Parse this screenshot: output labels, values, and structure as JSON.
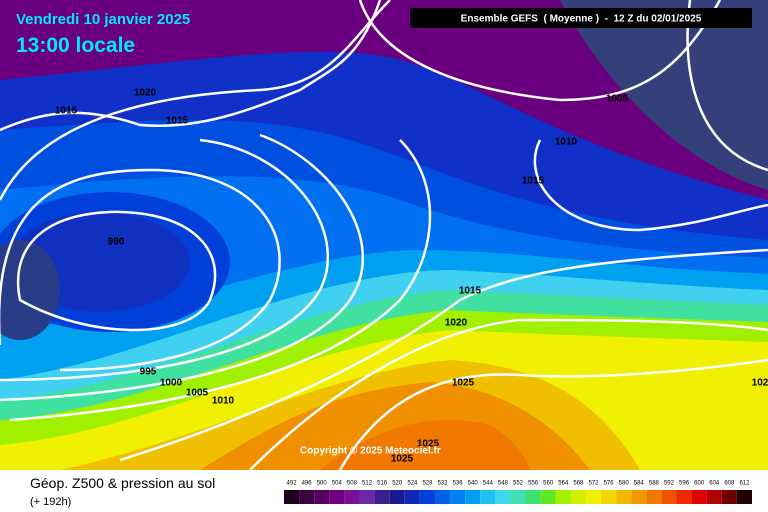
{
  "header": {
    "date": "Vendredi 10 janvier 2025",
    "time": "13:00 locale",
    "model": "Ensemble GEFS  ( Moyenne )  -  12 Z du 02/01/2025"
  },
  "isobar_labels": [
    "1020",
    "1015",
    "1015",
    "990",
    "995",
    "1000",
    "1005",
    "1010",
    "1005",
    "1010",
    "1015",
    "1015",
    "1020",
    "1025",
    "1025",
    "1025",
    "102"
  ],
  "copyright": "Copyright © 2025 Meteociel.fr",
  "legend": {
    "title": "Géop. Z500 & pression au sol",
    "lead": "(+ 192h)",
    "scale": [
      {
        "label": "492",
        "color": "#200020"
      },
      {
        "label": "496",
        "color": "#3a0040"
      },
      {
        "label": "500",
        "color": "#550060"
      },
      {
        "label": "504",
        "color": "#700080"
      },
      {
        "label": "508",
        "color": "#7a1098"
      },
      {
        "label": "512",
        "color": "#6a2aa8"
      },
      {
        "label": "516",
        "color": "#3c2090"
      },
      {
        "label": "520",
        "color": "#1a1a90"
      },
      {
        "label": "524",
        "color": "#1028b8"
      },
      {
        "label": "528",
        "color": "#0040d8"
      },
      {
        "label": "532",
        "color": "#0060e8"
      },
      {
        "label": "536",
        "color": "#0080f0"
      },
      {
        "label": "540",
        "color": "#00a0f0"
      },
      {
        "label": "544",
        "color": "#20c0f0"
      },
      {
        "label": "548",
        "color": "#40d8e8"
      },
      {
        "label": "552",
        "color": "#40e0b0"
      },
      {
        "label": "556",
        "color": "#40e070"
      },
      {
        "label": "560",
        "color": "#60e820"
      },
      {
        "label": "564",
        "color": "#a0f000"
      },
      {
        "label": "568",
        "color": "#d0f000"
      },
      {
        "label": "572",
        "color": "#f0f000"
      },
      {
        "label": "576",
        "color": "#f0d800"
      },
      {
        "label": "580",
        "color": "#f0b800"
      },
      {
        "label": "584",
        "color": "#f09800"
      },
      {
        "label": "588",
        "color": "#f07800"
      },
      {
        "label": "592",
        "color": "#f05000"
      },
      {
        "label": "596",
        "color": "#f02800"
      },
      {
        "label": "600",
        "color": "#e00000"
      },
      {
        "label": "604",
        "color": "#b00000"
      },
      {
        "label": "608",
        "color": "#700000"
      },
      {
        "label": "612",
        "color": "#200000"
      }
    ]
  }
}
